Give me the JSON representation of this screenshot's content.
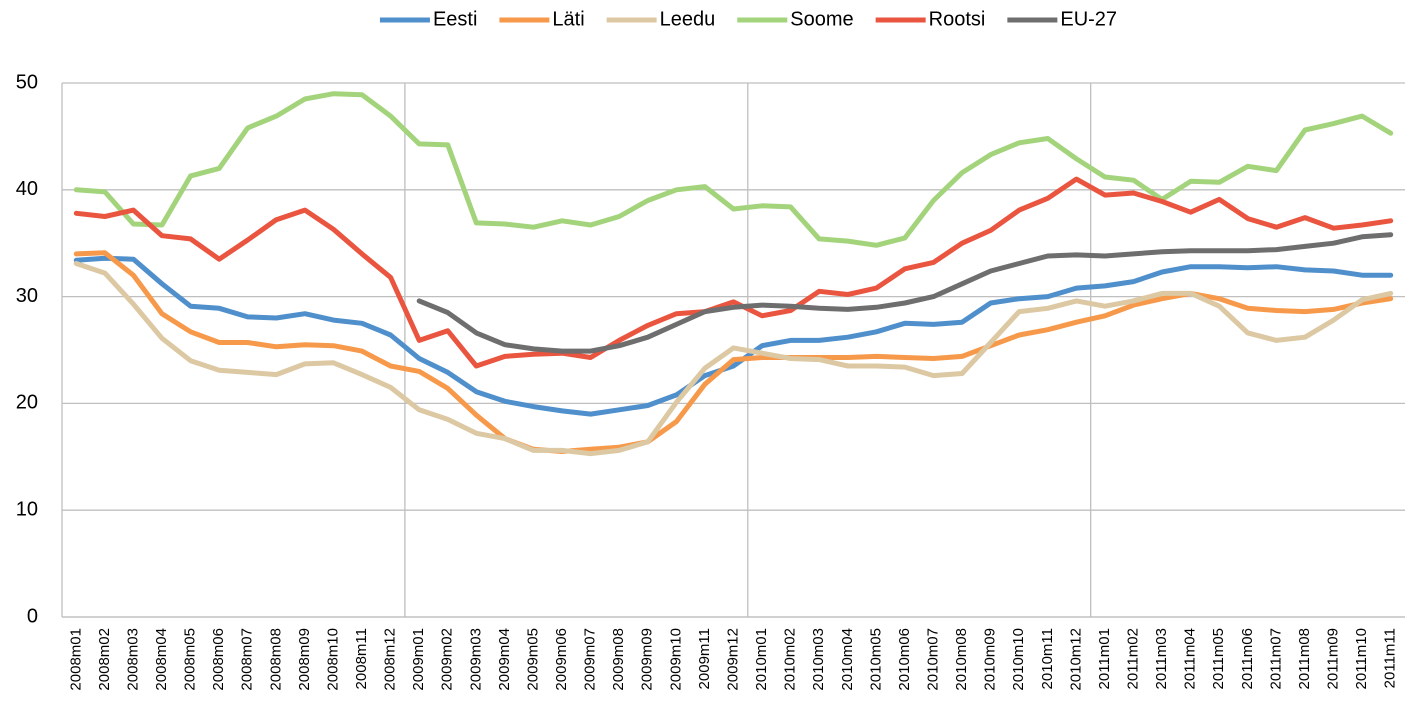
{
  "chart_data": {
    "type": "line",
    "categories": [
      "2008m01",
      "2008m02",
      "2008m03",
      "2008m04",
      "2008m05",
      "2008m06",
      "2008m07",
      "2008m08",
      "2008m09",
      "2008m10",
      "2008m11",
      "2008m12",
      "2009m01",
      "2009m02",
      "2009m03",
      "2009m04",
      "2009m05",
      "2009m06",
      "2009m07",
      "2009m08",
      "2009m09",
      "2009m10",
      "2009m11",
      "2009m12",
      "2010m01",
      "2010m02",
      "2010m03",
      "2010m04",
      "2010m05",
      "2010m06",
      "2010m07",
      "2010m08",
      "2010m09",
      "2010m10",
      "2010m11",
      "2010m12",
      "2011m01",
      "2011m02",
      "2011m03",
      "2011m04",
      "2011m05",
      "2011m06",
      "2011m07",
      "2011m08",
      "2011m09",
      "2011m10",
      "2011m11"
    ],
    "series": [
      {
        "name": "Eesti",
        "color": "#4f8fcb",
        "values": [
          33.4,
          33.6,
          33.5,
          31.2,
          29.1,
          28.9,
          28.1,
          28.0,
          28.4,
          27.8,
          27.5,
          26.4,
          24.2,
          22.9,
          21.1,
          20.2,
          19.7,
          19.3,
          19.0,
          19.4,
          19.8,
          20.8,
          22.6,
          23.5,
          25.4,
          25.9,
          25.9,
          26.2,
          26.7,
          27.5,
          27.4,
          27.6,
          29.4,
          29.8,
          30.0,
          30.8,
          31.0,
          31.4,
          32.3,
          32.8,
          32.8,
          32.7,
          32.8,
          32.5,
          32.4,
          32.0,
          32.0
        ]
      },
      {
        "name": "Läti",
        "color": "#f7994a",
        "values": [
          34.0,
          34.1,
          32.0,
          28.4,
          26.7,
          25.7,
          25.7,
          25.3,
          25.5,
          25.4,
          24.9,
          23.5,
          23.0,
          21.4,
          18.9,
          16.7,
          15.7,
          15.5,
          15.7,
          15.9,
          16.4,
          18.3,
          21.8,
          24.1,
          24.3,
          24.3,
          24.3,
          24.3,
          24.4,
          24.3,
          24.2,
          24.4,
          25.4,
          26.4,
          26.9,
          27.6,
          28.2,
          29.2,
          29.8,
          30.3,
          29.8,
          28.9,
          28.7,
          28.6,
          28.8,
          29.4,
          29.8
        ]
      },
      {
        "name": "Leedu",
        "color": "#dcc8a2",
        "values": [
          33.1,
          32.2,
          29.3,
          26.1,
          24.0,
          23.1,
          22.9,
          22.7,
          23.7,
          23.8,
          22.7,
          21.5,
          19.4,
          18.5,
          17.2,
          16.7,
          15.6,
          15.6,
          15.3,
          15.6,
          16.4,
          20.1,
          23.3,
          25.2,
          24.7,
          24.2,
          24.1,
          23.5,
          23.5,
          23.4,
          22.6,
          22.8,
          25.7,
          28.6,
          28.9,
          29.6,
          29.1,
          29.6,
          30.3,
          30.3,
          29.1,
          26.6,
          25.9,
          26.2,
          27.8,
          29.7,
          30.3
        ]
      },
      {
        "name": "Soome",
        "color": "#a3d47c",
        "values": [
          40.0,
          39.8,
          36.8,
          36.7,
          41.3,
          42.0,
          45.8,
          46.9,
          48.5,
          49.0,
          48.9,
          46.9,
          44.3,
          44.2,
          36.9,
          36.8,
          36.5,
          37.1,
          36.7,
          37.5,
          39.0,
          40.0,
          40.3,
          38.2,
          38.5,
          38.4,
          35.4,
          35.2,
          34.8,
          35.5,
          39.0,
          41.6,
          43.3,
          44.4,
          44.8,
          42.9,
          41.2,
          40.9,
          39.1,
          40.8,
          40.7,
          42.2,
          41.8,
          45.6,
          46.2,
          46.9,
          45.3
        ]
      },
      {
        "name": "Rootsi",
        "color": "#ea5540",
        "values": [
          37.8,
          37.5,
          38.1,
          35.7,
          35.4,
          33.5,
          35.3,
          37.2,
          38.1,
          36.3,
          34.0,
          31.8,
          25.9,
          26.8,
          23.5,
          24.4,
          24.6,
          24.7,
          24.3,
          25.9,
          27.3,
          28.4,
          28.6,
          29.5,
          28.2,
          28.7,
          30.5,
          30.2,
          30.8,
          32.6,
          33.2,
          35.0,
          36.2,
          38.1,
          39.2,
          41.0,
          39.5,
          39.7,
          38.9,
          37.9,
          39.1,
          37.3,
          36.5,
          37.4,
          36.4,
          36.7,
          37.1
        ]
      },
      {
        "name": "EU-27",
        "color": "#6e6e6e",
        "values": [
          null,
          null,
          null,
          null,
          null,
          null,
          null,
          null,
          null,
          null,
          null,
          null,
          29.6,
          28.5,
          26.6,
          25.5,
          25.1,
          24.9,
          24.9,
          25.4,
          26.2,
          27.4,
          28.6,
          29.0,
          29.2,
          29.1,
          28.9,
          28.8,
          29.0,
          29.4,
          30.0,
          31.2,
          32.4,
          33.1,
          33.8,
          33.9,
          33.8,
          34.0,
          34.2,
          34.3,
          34.3,
          34.3,
          34.4,
          34.7,
          35.0,
          35.6,
          35.8
        ]
      }
    ],
    "ylim": [
      0,
      50
    ],
    "yticks": [
      0,
      10,
      20,
      30,
      40,
      50
    ],
    "grid": true,
    "legend": "top"
  }
}
